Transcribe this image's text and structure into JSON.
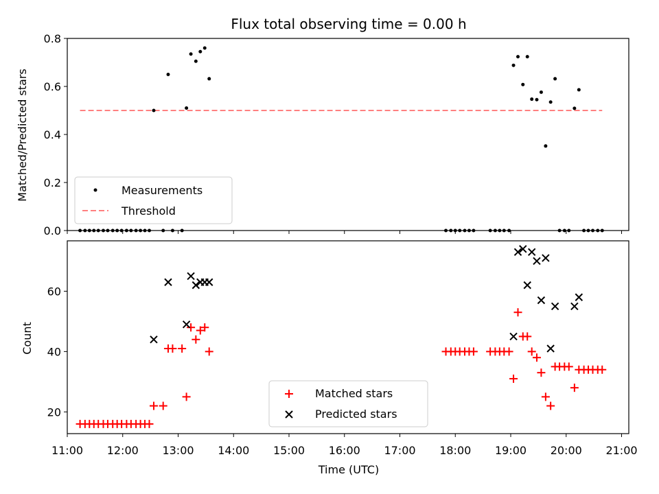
{
  "chart_data": [
    {
      "type": "scatter",
      "title": "Flux total observing time = 0.00 h",
      "ylabel": "Matched/Predicted stars",
      "xlabel": "",
      "xlim": [
        11.0,
        21.13
      ],
      "ylim": [
        0,
        0.8
      ],
      "yticks": [
        0.0,
        0.2,
        0.4,
        0.6,
        0.8
      ],
      "ytick_labels": [
        "0.0",
        "0.2",
        "0.4",
        "0.6",
        "0.8"
      ],
      "grid": false,
      "legend": {
        "position": "lower-left",
        "entries": [
          "Measurements",
          "Threshold"
        ]
      },
      "series": [
        {
          "name": "Measurements",
          "marker": "dot",
          "color": "#000000",
          "x": [
            11.23,
            11.32,
            11.4,
            11.48,
            11.56,
            11.65,
            11.73,
            11.82,
            11.9,
            11.98,
            12.07,
            12.15,
            12.24,
            12.32,
            12.4,
            12.48,
            12.56,
            12.73,
            12.82,
            12.9,
            13.07,
            13.15,
            13.23,
            13.32,
            13.4,
            13.48,
            13.56,
            17.83,
            17.92,
            18.0,
            18.08,
            18.17,
            18.25,
            18.33,
            18.63,
            18.72,
            18.8,
            18.88,
            18.97,
            19.05,
            19.13,
            19.22,
            19.3,
            19.38,
            19.47,
            19.55,
            19.63,
            19.72,
            19.8,
            19.88,
            19.97,
            20.05,
            20.15,
            20.23,
            20.32,
            20.4,
            20.48,
            20.57,
            20.65
          ],
          "y": [
            0,
            0,
            0,
            0,
            0,
            0,
            0,
            0,
            0,
            0,
            0,
            0,
            0,
            0,
            0,
            0,
            0.5,
            0,
            0.65,
            0,
            0,
            0.51,
            0.735,
            0.705,
            0.745,
            0.76,
            0.632,
            0,
            0,
            0,
            0,
            0,
            0,
            0,
            0,
            0,
            0,
            0,
            0,
            0.688,
            0.724,
            0.608,
            0.724,
            0.547,
            0.545,
            0.576,
            0.352,
            0.535,
            0.632,
            0,
            0,
            0,
            0.509,
            0.586,
            0,
            0,
            0,
            0,
            0
          ]
        },
        {
          "name": "Threshold",
          "type": "line",
          "style": "dashed",
          "color": "#ff7f7f",
          "x": [
            11.23,
            20.65
          ],
          "y": [
            0.5,
            0.5
          ]
        }
      ]
    },
    {
      "type": "scatter",
      "title": "",
      "ylabel": "Count",
      "xlabel": "Time (UTC)",
      "xlim": [
        11.0,
        21.13
      ],
      "ylim": [
        12.8,
        76.7
      ],
      "yticks": [
        20,
        40,
        60
      ],
      "ytick_labels": [
        "20",
        "40",
        "60"
      ],
      "xticks": [
        11,
        12,
        13,
        14,
        15,
        16,
        17,
        18,
        19,
        20,
        21
      ],
      "xtick_labels": [
        "11:00",
        "12:00",
        "13:00",
        "14:00",
        "15:00",
        "16:00",
        "17:00",
        "18:00",
        "19:00",
        "20:00",
        "21:00"
      ],
      "grid": false,
      "legend": {
        "position": "lower-center",
        "entries": [
          "Matched stars",
          "Predicted stars"
        ]
      },
      "series": [
        {
          "name": "Matched stars",
          "marker": "plus",
          "color": "#ff0000",
          "x": [
            11.23,
            11.32,
            11.4,
            11.48,
            11.56,
            11.65,
            11.73,
            11.82,
            11.9,
            11.98,
            12.07,
            12.15,
            12.24,
            12.32,
            12.4,
            12.48,
            12.56,
            12.73,
            12.82,
            12.9,
            13.07,
            13.15,
            13.23,
            13.32,
            13.4,
            13.48,
            13.56,
            17.83,
            17.92,
            18.0,
            18.08,
            18.17,
            18.25,
            18.33,
            18.63,
            18.72,
            18.8,
            18.88,
            18.97,
            19.05,
            19.13,
            19.22,
            19.3,
            19.38,
            19.47,
            19.55,
            19.63,
            19.72,
            19.8,
            19.88,
            19.97,
            20.05,
            20.15,
            20.23,
            20.32,
            20.4,
            20.48,
            20.57,
            20.65
          ],
          "y": [
            16,
            16,
            16,
            16,
            16,
            16,
            16,
            16,
            16,
            16,
            16,
            16,
            16,
            16,
            16,
            16,
            22,
            22,
            41,
            41,
            41,
            25,
            48,
            44,
            47,
            48,
            40,
            40,
            40,
            40,
            40,
            40,
            40,
            40,
            40,
            40,
            40,
            40,
            40,
            31,
            53,
            45,
            45,
            40,
            38,
            33,
            25,
            22,
            35,
            35,
            35,
            35,
            28,
            34,
            34,
            34,
            34,
            34,
            34
          ]
        },
        {
          "name": "Predicted stars",
          "marker": "x",
          "color": "#000000",
          "x": [
            12.56,
            12.82,
            13.15,
            13.23,
            13.32,
            13.4,
            13.48,
            13.56,
            19.05,
            19.13,
            19.22,
            19.3,
            19.38,
            19.47,
            19.55,
            19.63,
            19.72,
            19.8,
            20.15,
            20.23
          ],
          "y": [
            44,
            63,
            49,
            65,
            62,
            63,
            63,
            63,
            45,
            73,
            74,
            62,
            73,
            70,
            57,
            71,
            41,
            55,
            55,
            58
          ]
        }
      ]
    }
  ]
}
